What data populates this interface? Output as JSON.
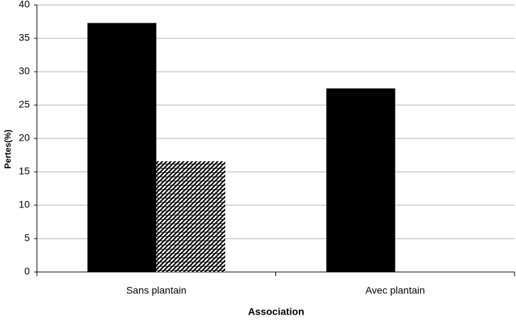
{
  "chart_data": {
    "type": "bar",
    "x_label": "Association",
    "y_label": "Pertes(%)",
    "categories": [
      "Sans plantain",
      "Avec plantain"
    ],
    "series": [
      {
        "color": "#000000",
        "values": [
          37.3,
          27.5
        ]
      },
      {
        "color": "#000000",
        "pattern": "hatch",
        "values": [
          16.6,
          0
        ]
      }
    ],
    "ylim": [
      0,
      40
    ],
    "yticks": [
      0,
      5,
      10,
      15,
      20,
      25,
      30,
      35,
      40
    ],
    "grid": true
  }
}
